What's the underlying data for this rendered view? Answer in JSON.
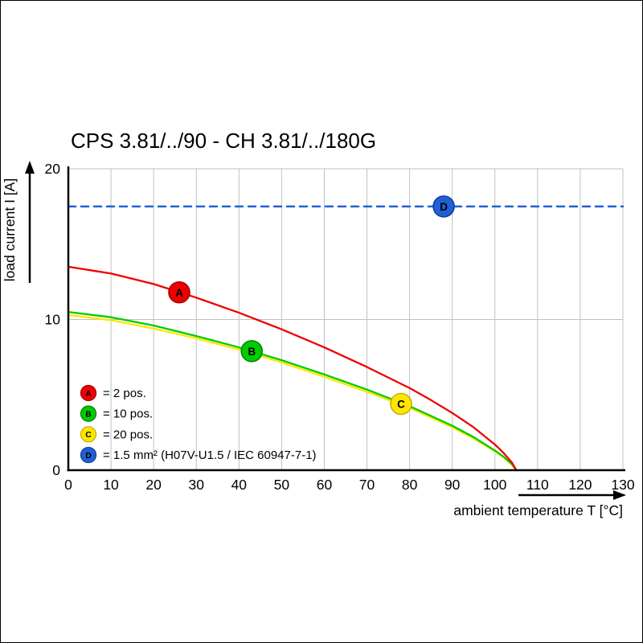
{
  "chart_data": {
    "type": "line",
    "title": "CPS 3.81/../90 - CH 3.81/../180G",
    "xlabel": "ambient temperature T [°C]",
    "ylabel": "load current I [A]",
    "xlim": [
      0,
      130
    ],
    "ylim": [
      0,
      20
    ],
    "x_ticks": [
      0,
      10,
      20,
      30,
      40,
      50,
      60,
      70,
      80,
      90,
      100,
      110,
      120,
      130
    ],
    "y_ticks": [
      0,
      10,
      20
    ],
    "grid": {
      "vertical_every": 10,
      "horizontal_lines": [
        10,
        20
      ],
      "color": "#c0c0c0"
    },
    "legend_position": "inside bottom-left",
    "series": [
      {
        "id": "A",
        "legend": "= 2 pos.",
        "color": "#ee0000",
        "marker_stroke": "#a80000",
        "line_style": "solid",
        "marker_at": [
          26,
          11.8
        ],
        "points": [
          [
            0,
            13.5
          ],
          [
            10,
            13.05
          ],
          [
            20,
            12.35
          ],
          [
            30,
            11.45
          ],
          [
            40,
            10.45
          ],
          [
            50,
            9.35
          ],
          [
            60,
            8.15
          ],
          [
            70,
            6.85
          ],
          [
            80,
            5.45
          ],
          [
            85,
            4.65
          ],
          [
            90,
            3.8
          ],
          [
            95,
            2.85
          ],
          [
            100,
            1.7
          ],
          [
            102,
            1.15
          ],
          [
            104,
            0.5
          ],
          [
            105,
            0
          ]
        ]
      },
      {
        "id": "B",
        "legend": "= 10 pos.",
        "color": "#00cc00",
        "marker_stroke": "#008500",
        "line_style": "solid",
        "marker_at": [
          43,
          7.9
        ],
        "points": [
          [
            0,
            10.5
          ],
          [
            10,
            10.15
          ],
          [
            20,
            9.6
          ],
          [
            30,
            8.9
          ],
          [
            40,
            8.15
          ],
          [
            50,
            7.3
          ],
          [
            60,
            6.35
          ],
          [
            70,
            5.35
          ],
          [
            80,
            4.25
          ],
          [
            85,
            3.6
          ],
          [
            90,
            2.95
          ],
          [
            95,
            2.2
          ],
          [
            100,
            1.3
          ],
          [
            102,
            0.9
          ],
          [
            104,
            0.4
          ],
          [
            105,
            0
          ]
        ]
      },
      {
        "id": "C",
        "legend": "= 20 pos.",
        "color": "#ffe600",
        "marker_stroke": "#c5b000",
        "line_style": "solid",
        "marker_at": [
          78,
          4.4
        ],
        "points": [
          [
            0,
            10.3
          ],
          [
            10,
            9.95
          ],
          [
            20,
            9.4
          ],
          [
            30,
            8.75
          ],
          [
            40,
            8.0
          ],
          [
            50,
            7.15
          ],
          [
            60,
            6.2
          ],
          [
            70,
            5.2
          ],
          [
            80,
            4.15
          ],
          [
            85,
            3.5
          ],
          [
            90,
            2.85
          ],
          [
            95,
            2.1
          ],
          [
            100,
            1.25
          ],
          [
            102,
            0.85
          ],
          [
            104,
            0.35
          ],
          [
            105,
            0
          ]
        ]
      },
      {
        "id": "D",
        "legend": "= 1.5 mm² (H07V-U1.5 / IEC 60947-7-1)",
        "color": "#2160d4",
        "marker_stroke": "#123f9e",
        "line_style": "dashed",
        "marker_at": [
          88,
          17.5
        ],
        "points": [
          [
            0,
            17.5
          ],
          [
            130,
            17.5
          ]
        ]
      }
    ]
  }
}
